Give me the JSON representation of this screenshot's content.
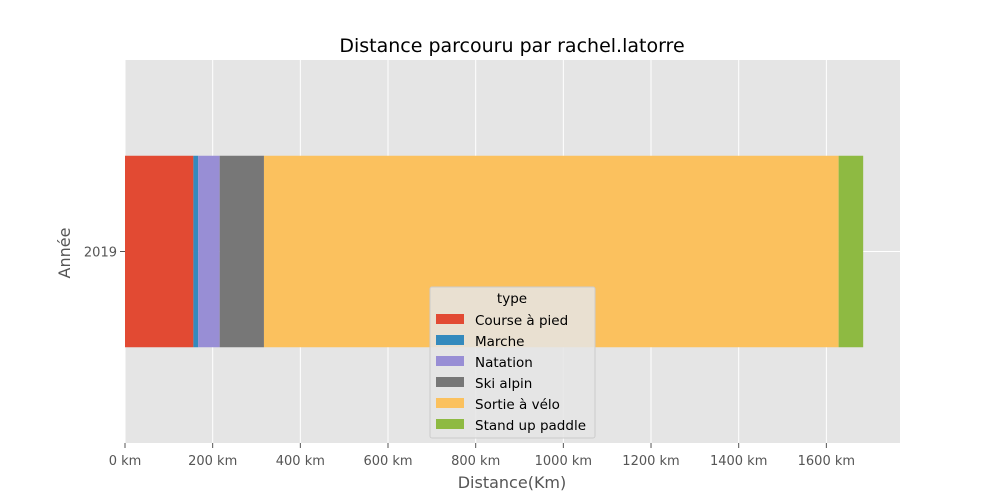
{
  "chart_data": {
    "type": "bar",
    "orientation": "horizontal",
    "stacked": true,
    "title": "Distance parcouru par rachel.latorre",
    "xlabel": "Distance(Km)",
    "ylabel": "Année",
    "categories": [
      "2019"
    ],
    "x_tick_labels": [
      "0 km",
      "200 km",
      "400 km",
      "600 km",
      "800 km",
      "1000 km",
      "1200 km",
      "1400 km",
      "1600 km"
    ],
    "x_ticks": [
      0,
      200,
      400,
      600,
      800,
      1000,
      1200,
      1400,
      1600
    ],
    "xlim": [
      0,
      1768
    ],
    "grid": true,
    "legend_title": "type",
    "legend_position": "bottom-center",
    "series": [
      {
        "name": "Course à pied",
        "values": [
          156
        ],
        "color": "#E24A33"
      },
      {
        "name": "Marche",
        "values": [
          11
        ],
        "color": "#348ABD"
      },
      {
        "name": "Natation",
        "values": [
          49
        ],
        "color": "#988ED5"
      },
      {
        "name": "Ski alpin",
        "values": [
          101
        ],
        "color": "#777777"
      },
      {
        "name": "Sortie à vélo",
        "values": [
          1311
        ],
        "color": "#FBC15E"
      },
      {
        "name": "Stand up paddle",
        "values": [
          56
        ],
        "color": "#8EBA42"
      }
    ]
  }
}
